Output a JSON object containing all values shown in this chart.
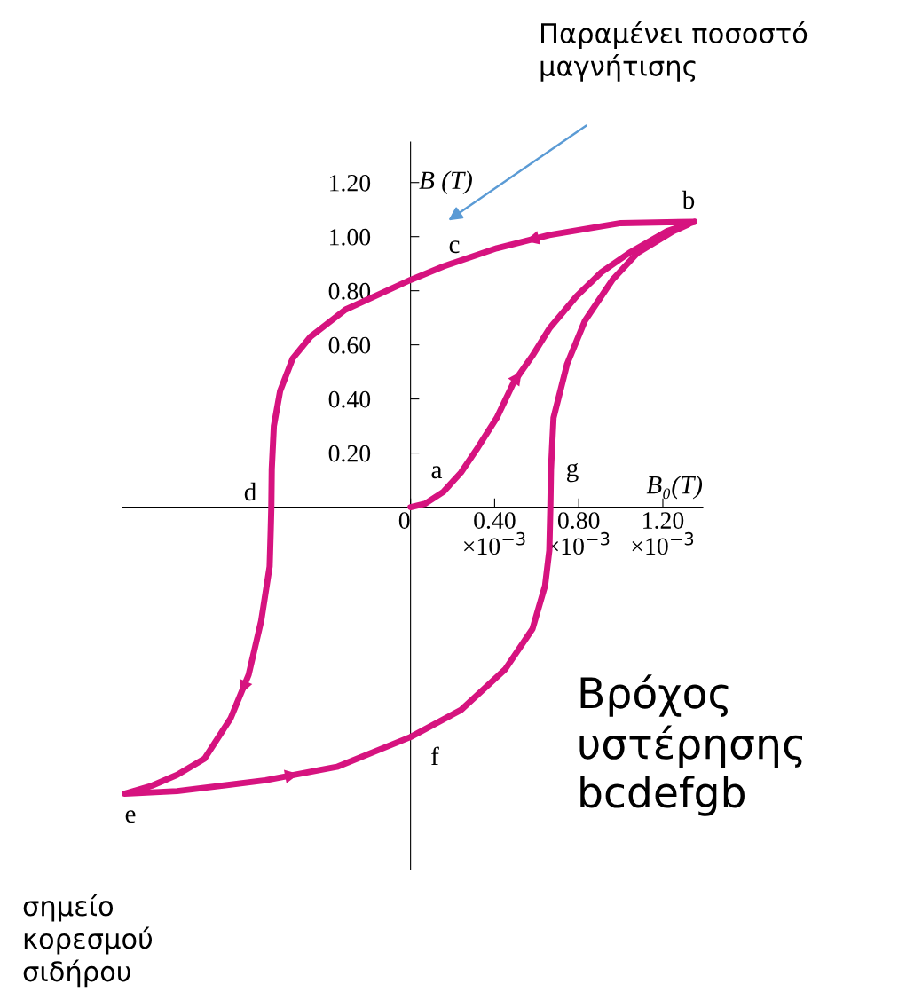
{
  "chart_data": {
    "type": "line",
    "ylabel": "B (T)",
    "xlabel": "B₀(T)",
    "xlim": [
      -0.00137,
      0.00139
    ],
    "ylim": [
      -1.34,
      1.35
    ],
    "xticks": [
      {
        "value": 0,
        "label": "0"
      },
      {
        "value": 0.0004,
        "label": "0.40\n×10$^{−3}$"
      },
      {
        "value": 0.0008,
        "label": "0.80\n×10$^{−3}$"
      },
      {
        "value": 0.0012,
        "label": "1.20\n×10$^{−3}$"
      }
    ],
    "yticks": [
      {
        "value": 0.2,
        "label": "0.20"
      },
      {
        "value": 0.4,
        "label": "0.40"
      },
      {
        "value": 0.6,
        "label": "0.60"
      },
      {
        "value": 0.8,
        "label": "0.80"
      },
      {
        "value": 1.0,
        "label": "1.00"
      },
      {
        "value": 1.2,
        "label": "1.20"
      }
    ],
    "grid": false,
    "marker": "none",
    "line_style": "solid",
    "series": [
      {
        "color": "#d6137f",
        "x": [
          0,
          7e-05,
          0.000156,
          0.00024,
          0.00032,
          0.00041,
          0.00049,
          0.00058,
          0.00066,
          0.00079,
          0.00091,
          0.00104,
          0.00122,
          0.00135
        ],
        "values": [
          0,
          0.013,
          0.056,
          0.128,
          0.22,
          0.33,
          0.46,
          0.56,
          0.66,
          0.78,
          0.87,
          0.94,
          1.02,
          1.055
        ]
      },
      {
        "color": "#d6137f",
        "x": [
          0.00135,
          0.001,
          0.00066,
          0.00041,
          0.000156,
          0,
          -0.00014,
          -0.00031,
          -0.000476,
          -0.00056,
          -0.00062,
          -0.00065,
          -0.00066,
          -0.000662,
          -0.000665,
          -0.00067,
          -0.00071,
          -0.00077,
          -0.000855,
          -0.00098,
          -0.00111,
          -0.00123,
          -0.00136,
          -0.00111,
          -0.00069,
          -0.00035,
          0,
          0.00024,
          0.00045,
          0.00058,
          0.00064,
          0.00066,
          0.000665,
          0.000668,
          0.00068,
          0.000745,
          0.00083,
          0.00096,
          0.00108,
          0.00125,
          0.00132
        ],
        "values": [
          1.055,
          1.05,
          1.006,
          0.957,
          0.89,
          0.84,
          0.79,
          0.73,
          0.63,
          0.55,
          0.43,
          0.3,
          0.14,
          0,
          -0.09,
          -0.22,
          -0.42,
          -0.62,
          -0.78,
          -0.93,
          -0.99,
          -1.03,
          -1.06,
          -1.05,
          -1.01,
          -0.96,
          -0.85,
          -0.75,
          -0.6,
          -0.45,
          -0.29,
          -0.16,
          0,
          0.14,
          0.33,
          0.53,
          0.69,
          0.84,
          0.94,
          1.02,
          1.045
        ]
      }
    ],
    "annotations": [
      "Παραμένει ποσοστό\nμαγνήτισης",
      "a",
      "b",
      "c",
      "d",
      "e",
      "f",
      "g",
      "Βρόχος\nυστέρησης\nbcdefgb",
      "σημείο\nκορεσμού\nσιδήρου"
    ]
  }
}
